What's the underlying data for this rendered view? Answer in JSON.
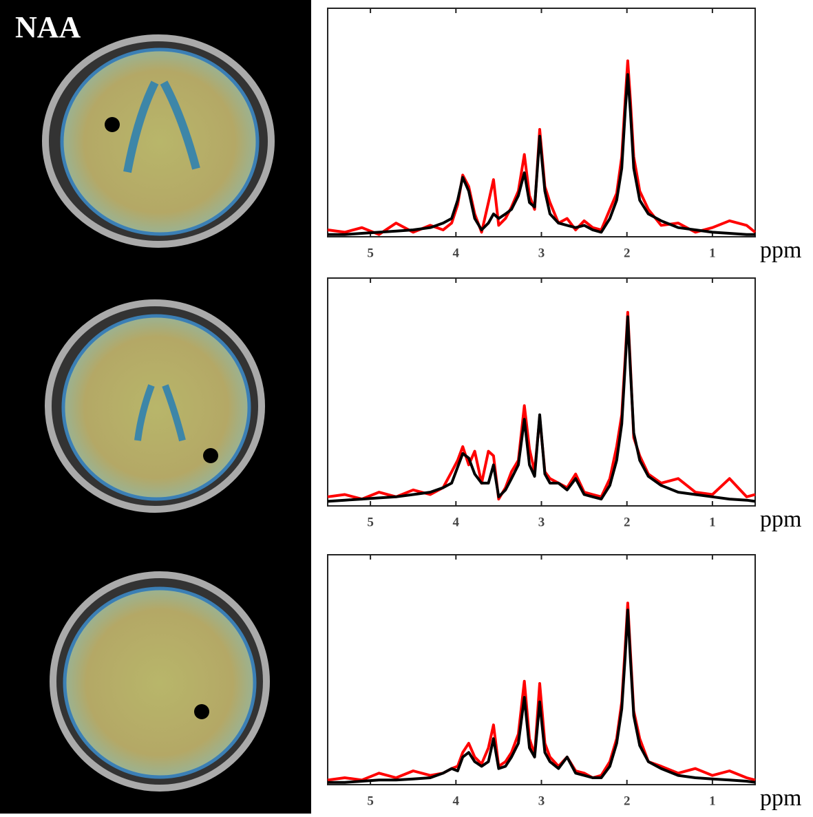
{
  "label": "NAA",
  "chart_data": [
    {
      "type": "line",
      "x_label": "ppm",
      "xlim": [
        5.5,
        0.5
      ],
      "ylim": [
        0,
        1
      ],
      "xticks": [
        5,
        4,
        3,
        2,
        1
      ],
      "x": [
        5.5,
        5.3,
        5.1,
        4.9,
        4.7,
        4.5,
        4.3,
        4.15,
        4.05,
        3.98,
        3.92,
        3.85,
        3.78,
        3.7,
        3.62,
        3.56,
        3.5,
        3.42,
        3.35,
        3.27,
        3.2,
        3.14,
        3.08,
        3.02,
        2.96,
        2.9,
        2.8,
        2.7,
        2.6,
        2.5,
        2.4,
        2.3,
        2.2,
        2.12,
        2.06,
        2.02,
        1.99,
        1.96,
        1.92,
        1.85,
        1.75,
        1.6,
        1.4,
        1.2,
        1.0,
        0.8,
        0.6,
        0.5
      ],
      "series": [
        {
          "color": "#ff0000",
          "values": [
            0.03,
            0.02,
            0.04,
            0.01,
            0.06,
            0.02,
            0.05,
            0.03,
            0.06,
            0.14,
            0.27,
            0.22,
            0.1,
            0.02,
            0.15,
            0.25,
            0.05,
            0.08,
            0.13,
            0.2,
            0.36,
            0.18,
            0.12,
            0.47,
            0.22,
            0.15,
            0.06,
            0.08,
            0.03,
            0.07,
            0.04,
            0.03,
            0.12,
            0.19,
            0.35,
            0.6,
            0.77,
            0.6,
            0.35,
            0.2,
            0.12,
            0.05,
            0.06,
            0.02,
            0.04,
            0.07,
            0.05,
            0.02
          ]
        },
        {
          "color": "#000000",
          "values": [
            0.01,
            0.01,
            0.015,
            0.02,
            0.025,
            0.03,
            0.04,
            0.06,
            0.08,
            0.16,
            0.26,
            0.2,
            0.08,
            0.03,
            0.06,
            0.1,
            0.08,
            0.1,
            0.12,
            0.18,
            0.28,
            0.15,
            0.13,
            0.44,
            0.2,
            0.1,
            0.06,
            0.05,
            0.04,
            0.05,
            0.03,
            0.02,
            0.08,
            0.16,
            0.3,
            0.55,
            0.71,
            0.55,
            0.3,
            0.16,
            0.1,
            0.07,
            0.04,
            0.03,
            0.02,
            0.015,
            0.01,
            0.01
          ]
        }
      ]
    },
    {
      "type": "line",
      "x_label": "ppm",
      "xlim": [
        5.5,
        0.5
      ],
      "ylim": [
        0,
        1
      ],
      "xticks": [
        5,
        4,
        3,
        2,
        1
      ],
      "x": [
        5.5,
        5.3,
        5.1,
        4.9,
        4.7,
        4.5,
        4.3,
        4.15,
        4.05,
        3.98,
        3.92,
        3.85,
        3.78,
        3.7,
        3.62,
        3.56,
        3.5,
        3.42,
        3.35,
        3.27,
        3.2,
        3.14,
        3.08,
        3.02,
        2.96,
        2.9,
        2.8,
        2.7,
        2.6,
        2.5,
        2.4,
        2.3,
        2.2,
        2.12,
        2.06,
        2.02,
        1.99,
        1.96,
        1.92,
        1.85,
        1.75,
        1.6,
        1.4,
        1.2,
        1.0,
        0.8,
        0.6,
        0.5
      ],
      "series": [
        {
          "color": "#ff0000",
          "values": [
            0.04,
            0.05,
            0.03,
            0.06,
            0.04,
            0.07,
            0.05,
            0.08,
            0.15,
            0.2,
            0.26,
            0.18,
            0.24,
            0.1,
            0.24,
            0.22,
            0.03,
            0.08,
            0.15,
            0.2,
            0.44,
            0.25,
            0.15,
            0.39,
            0.15,
            0.12,
            0.1,
            0.08,
            0.14,
            0.06,
            0.05,
            0.04,
            0.12,
            0.26,
            0.4,
            0.65,
            0.85,
            0.62,
            0.3,
            0.22,
            0.14,
            0.1,
            0.12,
            0.06,
            0.05,
            0.12,
            0.04,
            0.05
          ]
        },
        {
          "color": "#000000",
          "values": [
            0.02,
            0.025,
            0.03,
            0.035,
            0.04,
            0.05,
            0.06,
            0.08,
            0.1,
            0.17,
            0.23,
            0.21,
            0.14,
            0.1,
            0.1,
            0.18,
            0.04,
            0.07,
            0.12,
            0.18,
            0.38,
            0.18,
            0.13,
            0.4,
            0.14,
            0.1,
            0.1,
            0.07,
            0.12,
            0.05,
            0.04,
            0.03,
            0.09,
            0.2,
            0.36,
            0.62,
            0.83,
            0.6,
            0.32,
            0.2,
            0.13,
            0.09,
            0.06,
            0.05,
            0.04,
            0.03,
            0.025,
            0.02
          ]
        }
      ]
    },
    {
      "type": "line",
      "x_label": "ppm",
      "xlim": [
        5.5,
        0.5
      ],
      "ylim": [
        0,
        1
      ],
      "xticks": [
        5,
        4,
        3,
        2,
        1
      ],
      "x": [
        5.5,
        5.3,
        5.1,
        4.9,
        4.7,
        4.5,
        4.3,
        4.15,
        4.05,
        3.98,
        3.92,
        3.85,
        3.78,
        3.7,
        3.62,
        3.56,
        3.5,
        3.42,
        3.35,
        3.27,
        3.2,
        3.14,
        3.08,
        3.02,
        2.96,
        2.9,
        2.8,
        2.7,
        2.6,
        2.5,
        2.4,
        2.3,
        2.2,
        2.12,
        2.06,
        2.02,
        1.99,
        1.96,
        1.92,
        1.85,
        1.75,
        1.6,
        1.4,
        1.2,
        1.0,
        0.8,
        0.6,
        0.5
      ],
      "series": [
        {
          "color": "#ff0000",
          "values": [
            0.02,
            0.03,
            0.02,
            0.05,
            0.03,
            0.06,
            0.04,
            0.05,
            0.07,
            0.08,
            0.14,
            0.18,
            0.12,
            0.09,
            0.16,
            0.26,
            0.08,
            0.1,
            0.14,
            0.22,
            0.45,
            0.2,
            0.13,
            0.44,
            0.18,
            0.12,
            0.08,
            0.12,
            0.06,
            0.05,
            0.03,
            0.04,
            0.1,
            0.2,
            0.36,
            0.6,
            0.79,
            0.58,
            0.32,
            0.2,
            0.1,
            0.08,
            0.05,
            0.07,
            0.04,
            0.06,
            0.03,
            0.02
          ]
        },
        {
          "color": "#000000",
          "values": [
            0.01,
            0.01,
            0.015,
            0.02,
            0.02,
            0.025,
            0.03,
            0.05,
            0.07,
            0.06,
            0.12,
            0.14,
            0.1,
            0.08,
            0.1,
            0.2,
            0.07,
            0.08,
            0.12,
            0.18,
            0.38,
            0.16,
            0.12,
            0.36,
            0.14,
            0.1,
            0.07,
            0.12,
            0.05,
            0.04,
            0.03,
            0.03,
            0.08,
            0.18,
            0.33,
            0.56,
            0.76,
            0.55,
            0.3,
            0.17,
            0.1,
            0.07,
            0.04,
            0.03,
            0.025,
            0.02,
            0.015,
            0.01
          ]
        }
      ]
    }
  ]
}
